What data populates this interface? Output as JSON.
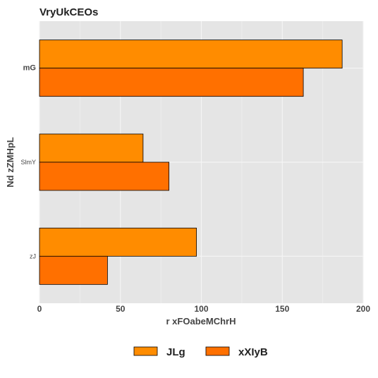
{
  "chart_data": {
    "type": "bar",
    "orientation": "horizontal",
    "title": "VryUkCEOs",
    "xlabel": "r xFOabeMChrH",
    "ylabel": "Nd zZMHpL",
    "categories": [
      "mG",
      "SlmY",
      "zJ"
    ],
    "series": [
      {
        "name": "JLg",
        "values": [
          187,
          64,
          97
        ],
        "color": "#FF8C00"
      },
      {
        "name": "xXIyB",
        "values": [
          163,
          80,
          42
        ],
        "color": "#FF7000"
      }
    ],
    "xlim": [
      0,
      200
    ],
    "xticks": [
      "0",
      "50",
      "100",
      "150",
      "200"
    ],
    "grid": true,
    "legend_position": "bottom",
    "background_color": "#E5E5E5"
  }
}
